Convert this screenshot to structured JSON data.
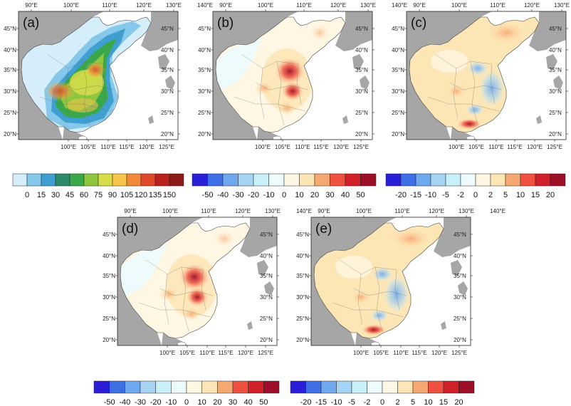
{
  "panels": [
    {
      "label": "(a)",
      "scheme": "a"
    },
    {
      "label": "(b)",
      "scheme": "b"
    },
    {
      "label": "(c)",
      "scheme": "c"
    },
    {
      "label": "(d)",
      "scheme": "b"
    },
    {
      "label": "(e)",
      "scheme": "c"
    }
  ],
  "top_lon_labels": [
    "90°E",
    "100°E",
    "110°E",
    "120°E",
    "130°E",
    "140°E"
  ],
  "bottom_lon_labels": [
    "100°E",
    "105°E",
    "110°E",
    "115°E",
    "120°E",
    "125°E"
  ],
  "left_lat_labels": [
    "45°N",
    "40°N",
    "35°N",
    "30°N",
    "25°N",
    "20°N"
  ],
  "right_lat_labels": [
    "45°N",
    "40°N",
    "35°N",
    "30°N",
    "25°N",
    "20°N"
  ],
  "colorbars": [
    {
      "id": "a",
      "labels": [
        "0",
        "15",
        "30",
        "45",
        "60",
        "75",
        "90",
        "105",
        "120",
        "135",
        "150"
      ],
      "colors": [
        "#d6eefa",
        "#86c8ea",
        "#3f9fd0",
        "#2d8a6a",
        "#3aa84a",
        "#8ec63f",
        "#d7dc4a",
        "#f6c54a",
        "#f08a3a",
        "#e04a2c",
        "#b8211e",
        "#8c1a16"
      ]
    },
    {
      "id": "b",
      "labels": [
        "-50",
        "-40",
        "-30",
        "-20",
        "-10",
        "0",
        "10",
        "20",
        "30",
        "40",
        "50"
      ],
      "colors": [
        "#2a1fd6",
        "#3f6fe6",
        "#70a8ee",
        "#a8d4f4",
        "#c9eff8",
        "#eefbfd",
        "#fff7e4",
        "#fde6b6",
        "#f6a872",
        "#f05040",
        "#d2202a",
        "#9c0f26"
      ]
    },
    {
      "id": "c",
      "labels": [
        "-20",
        "-15",
        "-10",
        "-5",
        "-2",
        "0",
        "2",
        "5",
        "10",
        "15",
        "20"
      ],
      "colors": [
        "#2a1fd6",
        "#3f6fe6",
        "#70a8ee",
        "#a8d4f4",
        "#c9eff8",
        "#eefbfd",
        "#fff7e4",
        "#fde6b6",
        "#f6a872",
        "#f05040",
        "#d2202a",
        "#9c0f26"
      ]
    }
  ],
  "colors": {
    "land_gray": "#a6a6a6",
    "sea": "#ffffff",
    "outline": "#333333"
  }
}
